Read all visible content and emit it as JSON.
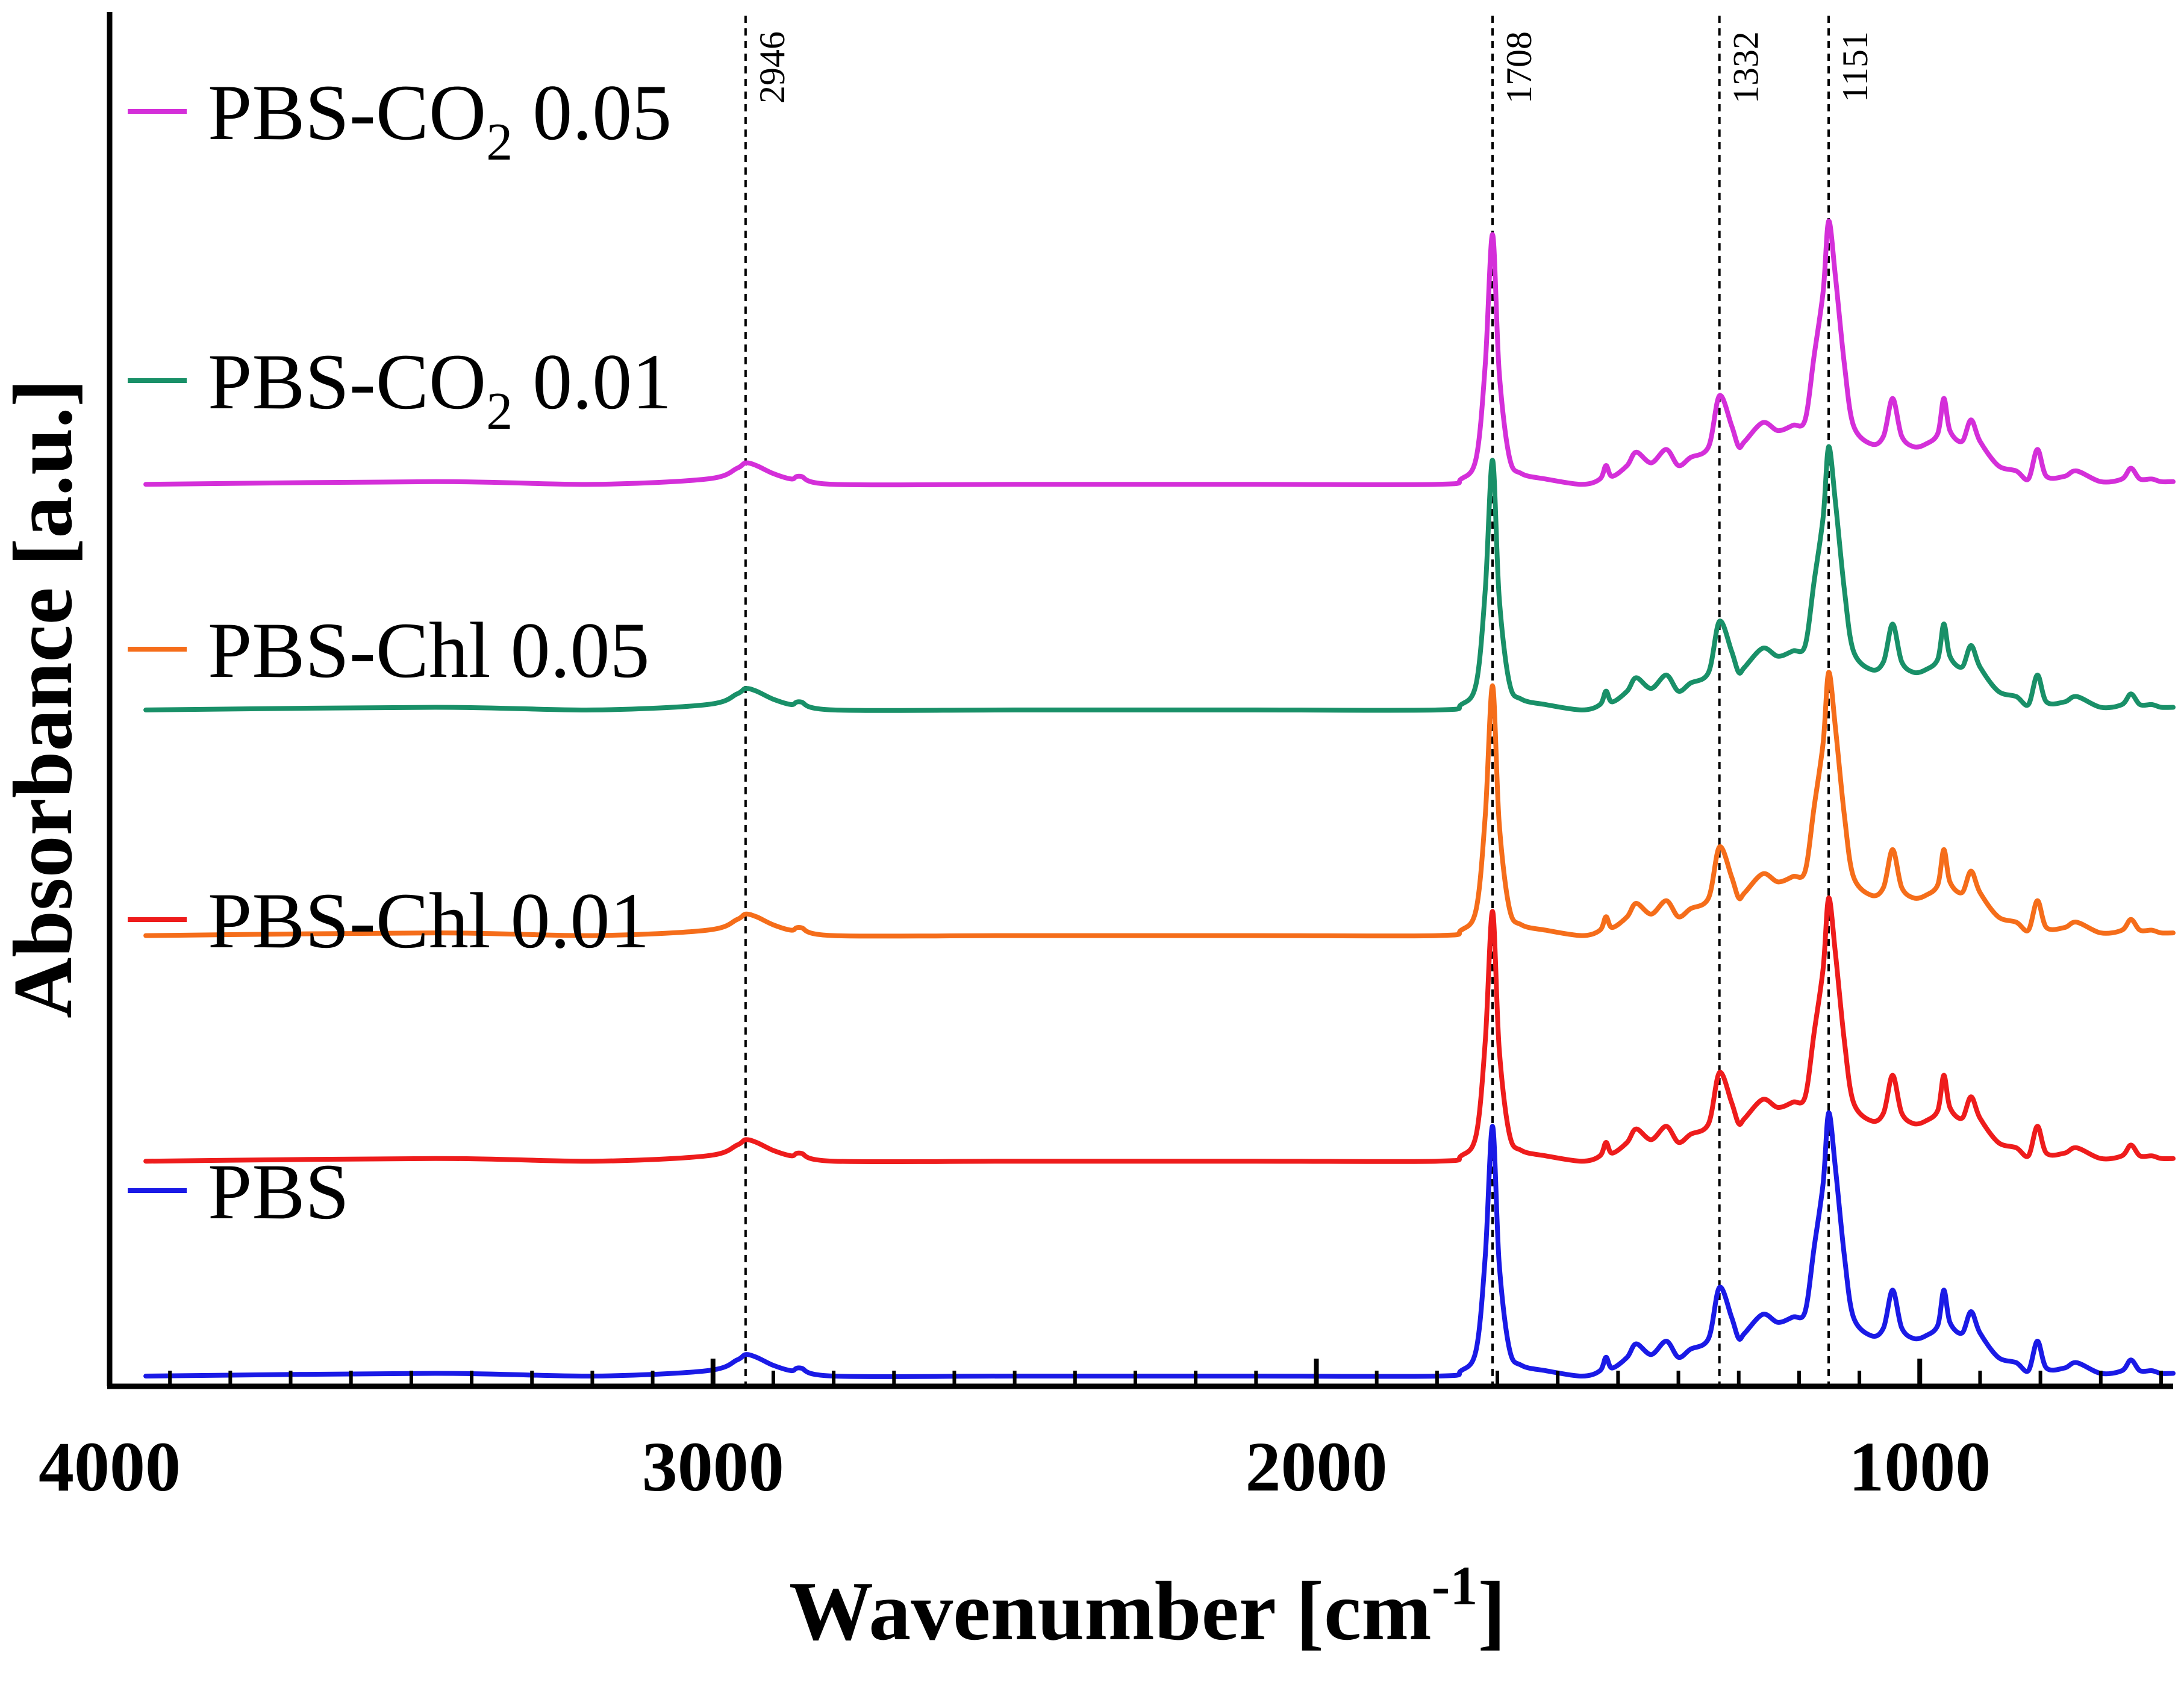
{
  "chart_data": {
    "type": "line",
    "title": "",
    "xlabel": "Wavenumber [cm",
    "xlabel_sup": "-1",
    "xlabel_end": "]",
    "ylabel": "Absorbance [a.u.]",
    "xlim": [
      4000,
      580
    ],
    "x_ticks": [
      4000,
      3000,
      2000,
      1000
    ],
    "x_tick_labels": [
      "4000",
      "3000",
      "2000",
      "1000"
    ],
    "y_ticks_visible": false,
    "grid": false,
    "legend_placement": "left, stacked beside curves",
    "stacked_offset": true,
    "reference_lines": [
      {
        "x": 2946,
        "label": "2946"
      },
      {
        "x": 1708,
        "label": "1708"
      },
      {
        "x": 1332,
        "label": "1332"
      },
      {
        "x": 1151,
        "label": "1151"
      }
    ],
    "band_x": [
      3940,
      3460,
      3200,
      3010,
      2960,
      2946,
      2928,
      2900,
      2870,
      2855,
      2800,
      2500,
      2100,
      1800,
      1760,
      1735,
      1720,
      1708,
      1697,
      1680,
      1660,
      1620,
      1560,
      1530,
      1520,
      1510,
      1485,
      1470,
      1445,
      1420,
      1400,
      1380,
      1350,
      1332,
      1312,
      1300,
      1290,
      1260,
      1235,
      1210,
      1190,
      1175,
      1160,
      1151,
      1140,
      1125,
      1110,
      1080,
      1060,
      1045,
      1030,
      1010,
      990,
      970,
      960,
      950,
      930,
      915,
      900,
      870,
      840,
      820,
      805,
      790,
      760,
      740,
      700,
      665,
      650,
      635,
      615,
      600,
      580
    ],
    "series": [
      {
        "name": "PBS-CO",
        "name_sub": "2",
        "name_end": " 0.05",
        "color": "#d42fd9",
        "offset": 3.32,
        "values": [
          0.0,
          0.01,
          0.0,
          0.02,
          0.06,
          0.08,
          0.07,
          0.04,
          0.02,
          0.03,
          0.0,
          0.0,
          0.0,
          0.0,
          0.02,
          0.1,
          0.45,
          0.93,
          0.42,
          0.1,
          0.04,
          0.02,
          0.0,
          0.02,
          0.07,
          0.03,
          0.07,
          0.12,
          0.08,
          0.13,
          0.07,
          0.1,
          0.14,
          0.33,
          0.22,
          0.14,
          0.16,
          0.23,
          0.2,
          0.22,
          0.24,
          0.48,
          0.72,
          0.98,
          0.78,
          0.45,
          0.22,
          0.15,
          0.18,
          0.32,
          0.18,
          0.14,
          0.15,
          0.19,
          0.32,
          0.2,
          0.16,
          0.24,
          0.16,
          0.07,
          0.05,
          0.02,
          0.13,
          0.03,
          0.03,
          0.05,
          0.01,
          0.02,
          0.06,
          0.02,
          0.02,
          0.01,
          0.01
        ]
      },
      {
        "name": "PBS-CO",
        "name_sub": "2",
        "name_end": " 0.01",
        "color": "#199068",
        "offset": 2.48,
        "values": [
          0.0,
          0.01,
          0.0,
          0.02,
          0.06,
          0.08,
          0.07,
          0.04,
          0.02,
          0.03,
          0.0,
          0.0,
          0.0,
          0.0,
          0.02,
          0.1,
          0.45,
          0.93,
          0.42,
          0.1,
          0.04,
          0.02,
          0.0,
          0.02,
          0.07,
          0.03,
          0.07,
          0.12,
          0.08,
          0.13,
          0.07,
          0.1,
          0.14,
          0.33,
          0.22,
          0.14,
          0.16,
          0.23,
          0.2,
          0.22,
          0.24,
          0.48,
          0.72,
          0.98,
          0.78,
          0.45,
          0.22,
          0.15,
          0.18,
          0.32,
          0.18,
          0.14,
          0.15,
          0.19,
          0.32,
          0.2,
          0.16,
          0.24,
          0.16,
          0.07,
          0.05,
          0.02,
          0.13,
          0.03,
          0.03,
          0.05,
          0.01,
          0.02,
          0.06,
          0.02,
          0.02,
          0.01,
          0.01
        ]
      },
      {
        "name": "PBS-Chl 0.05",
        "name_sub": "",
        "name_end": "",
        "color": "#f56d1a",
        "offset": 1.64,
        "values": [
          0.0,
          0.01,
          0.0,
          0.02,
          0.06,
          0.08,
          0.07,
          0.04,
          0.02,
          0.03,
          0.0,
          0.0,
          0.0,
          0.0,
          0.02,
          0.1,
          0.45,
          0.93,
          0.42,
          0.1,
          0.04,
          0.02,
          0.0,
          0.02,
          0.07,
          0.03,
          0.07,
          0.12,
          0.08,
          0.13,
          0.07,
          0.1,
          0.14,
          0.33,
          0.22,
          0.14,
          0.16,
          0.23,
          0.2,
          0.22,
          0.24,
          0.48,
          0.72,
          0.98,
          0.78,
          0.45,
          0.22,
          0.15,
          0.18,
          0.32,
          0.18,
          0.14,
          0.15,
          0.19,
          0.32,
          0.2,
          0.16,
          0.24,
          0.16,
          0.07,
          0.05,
          0.02,
          0.13,
          0.03,
          0.03,
          0.05,
          0.01,
          0.02,
          0.06,
          0.02,
          0.02,
          0.01,
          0.01
        ]
      },
      {
        "name": "PBS-Chl 0.01",
        "name_sub": "",
        "name_end": "",
        "color": "#ee1c1c",
        "offset": 0.8,
        "values": [
          0.0,
          0.01,
          0.0,
          0.02,
          0.06,
          0.08,
          0.07,
          0.04,
          0.02,
          0.03,
          0.0,
          0.0,
          0.0,
          0.0,
          0.02,
          0.1,
          0.45,
          0.93,
          0.42,
          0.1,
          0.04,
          0.02,
          0.0,
          0.02,
          0.07,
          0.03,
          0.07,
          0.12,
          0.08,
          0.13,
          0.07,
          0.1,
          0.14,
          0.33,
          0.22,
          0.14,
          0.16,
          0.23,
          0.2,
          0.22,
          0.24,
          0.48,
          0.72,
          0.98,
          0.78,
          0.45,
          0.22,
          0.15,
          0.18,
          0.32,
          0.18,
          0.14,
          0.15,
          0.19,
          0.32,
          0.2,
          0.16,
          0.24,
          0.16,
          0.07,
          0.05,
          0.02,
          0.13,
          0.03,
          0.03,
          0.05,
          0.01,
          0.02,
          0.06,
          0.02,
          0.02,
          0.01,
          0.01
        ]
      },
      {
        "name": "PBS",
        "name_sub": "",
        "name_end": "",
        "color": "#1a1ae6",
        "offset": 0.0,
        "values": [
          0.0,
          0.01,
          0.0,
          0.02,
          0.06,
          0.08,
          0.07,
          0.04,
          0.02,
          0.03,
          0.0,
          0.0,
          0.0,
          0.0,
          0.02,
          0.1,
          0.45,
          0.93,
          0.42,
          0.1,
          0.04,
          0.02,
          0.0,
          0.02,
          0.07,
          0.03,
          0.07,
          0.12,
          0.08,
          0.13,
          0.07,
          0.1,
          0.14,
          0.33,
          0.22,
          0.14,
          0.16,
          0.23,
          0.2,
          0.22,
          0.24,
          0.48,
          0.72,
          0.98,
          0.78,
          0.45,
          0.22,
          0.15,
          0.18,
          0.32,
          0.18,
          0.14,
          0.15,
          0.19,
          0.32,
          0.2,
          0.16,
          0.24,
          0.16,
          0.07,
          0.05,
          0.02,
          0.13,
          0.03,
          0.03,
          0.05,
          0.01,
          0.02,
          0.06,
          0.02,
          0.02,
          0.01,
          0.01
        ]
      }
    ]
  }
}
